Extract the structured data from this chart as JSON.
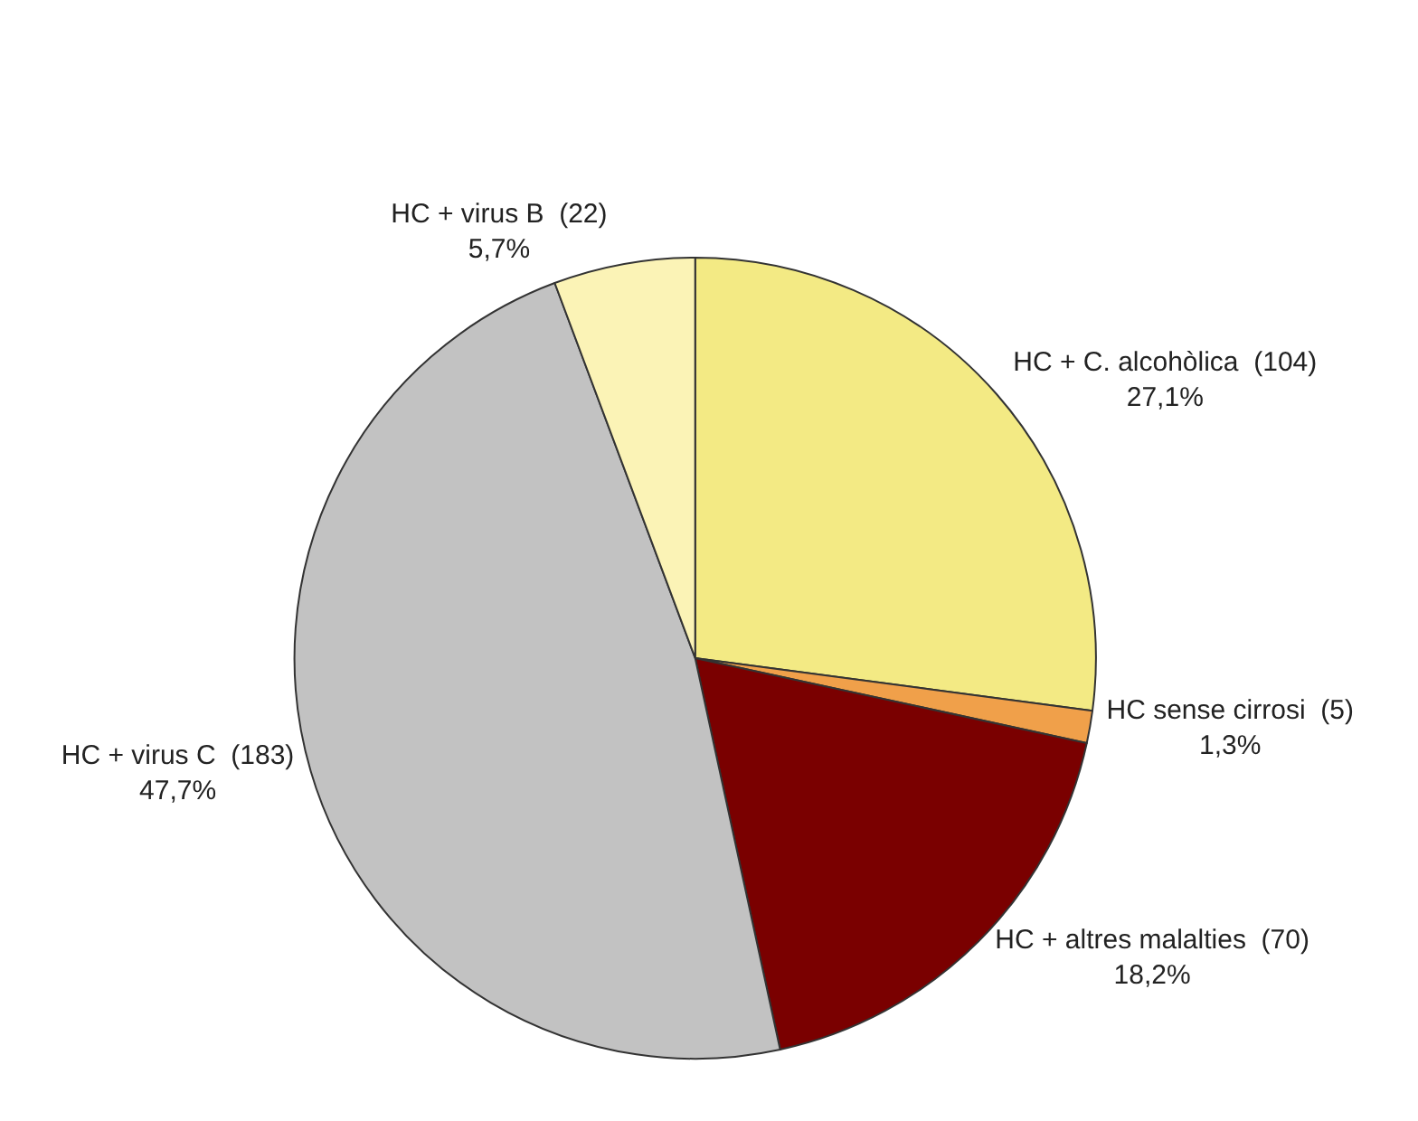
{
  "chart_data": {
    "type": "pie",
    "categories": [
      "HC + C. alcohòlica  (104)",
      "HC sense cirrosi  (5)",
      "HC + altres malalties  (70)",
      "HC + virus C  (183)",
      "HC + virus B  (22)"
    ],
    "values": [
      27.1,
      1.3,
      18.2,
      47.7,
      5.7
    ],
    "value_labels": [
      "27,1%",
      "1,3%",
      "18,2%",
      "47,7%",
      "5,7%"
    ],
    "colors": [
      "#f3ea84",
      "#f0a04a",
      "#7a0000",
      "#c2c2c2",
      "#fbf3b6"
    ]
  }
}
